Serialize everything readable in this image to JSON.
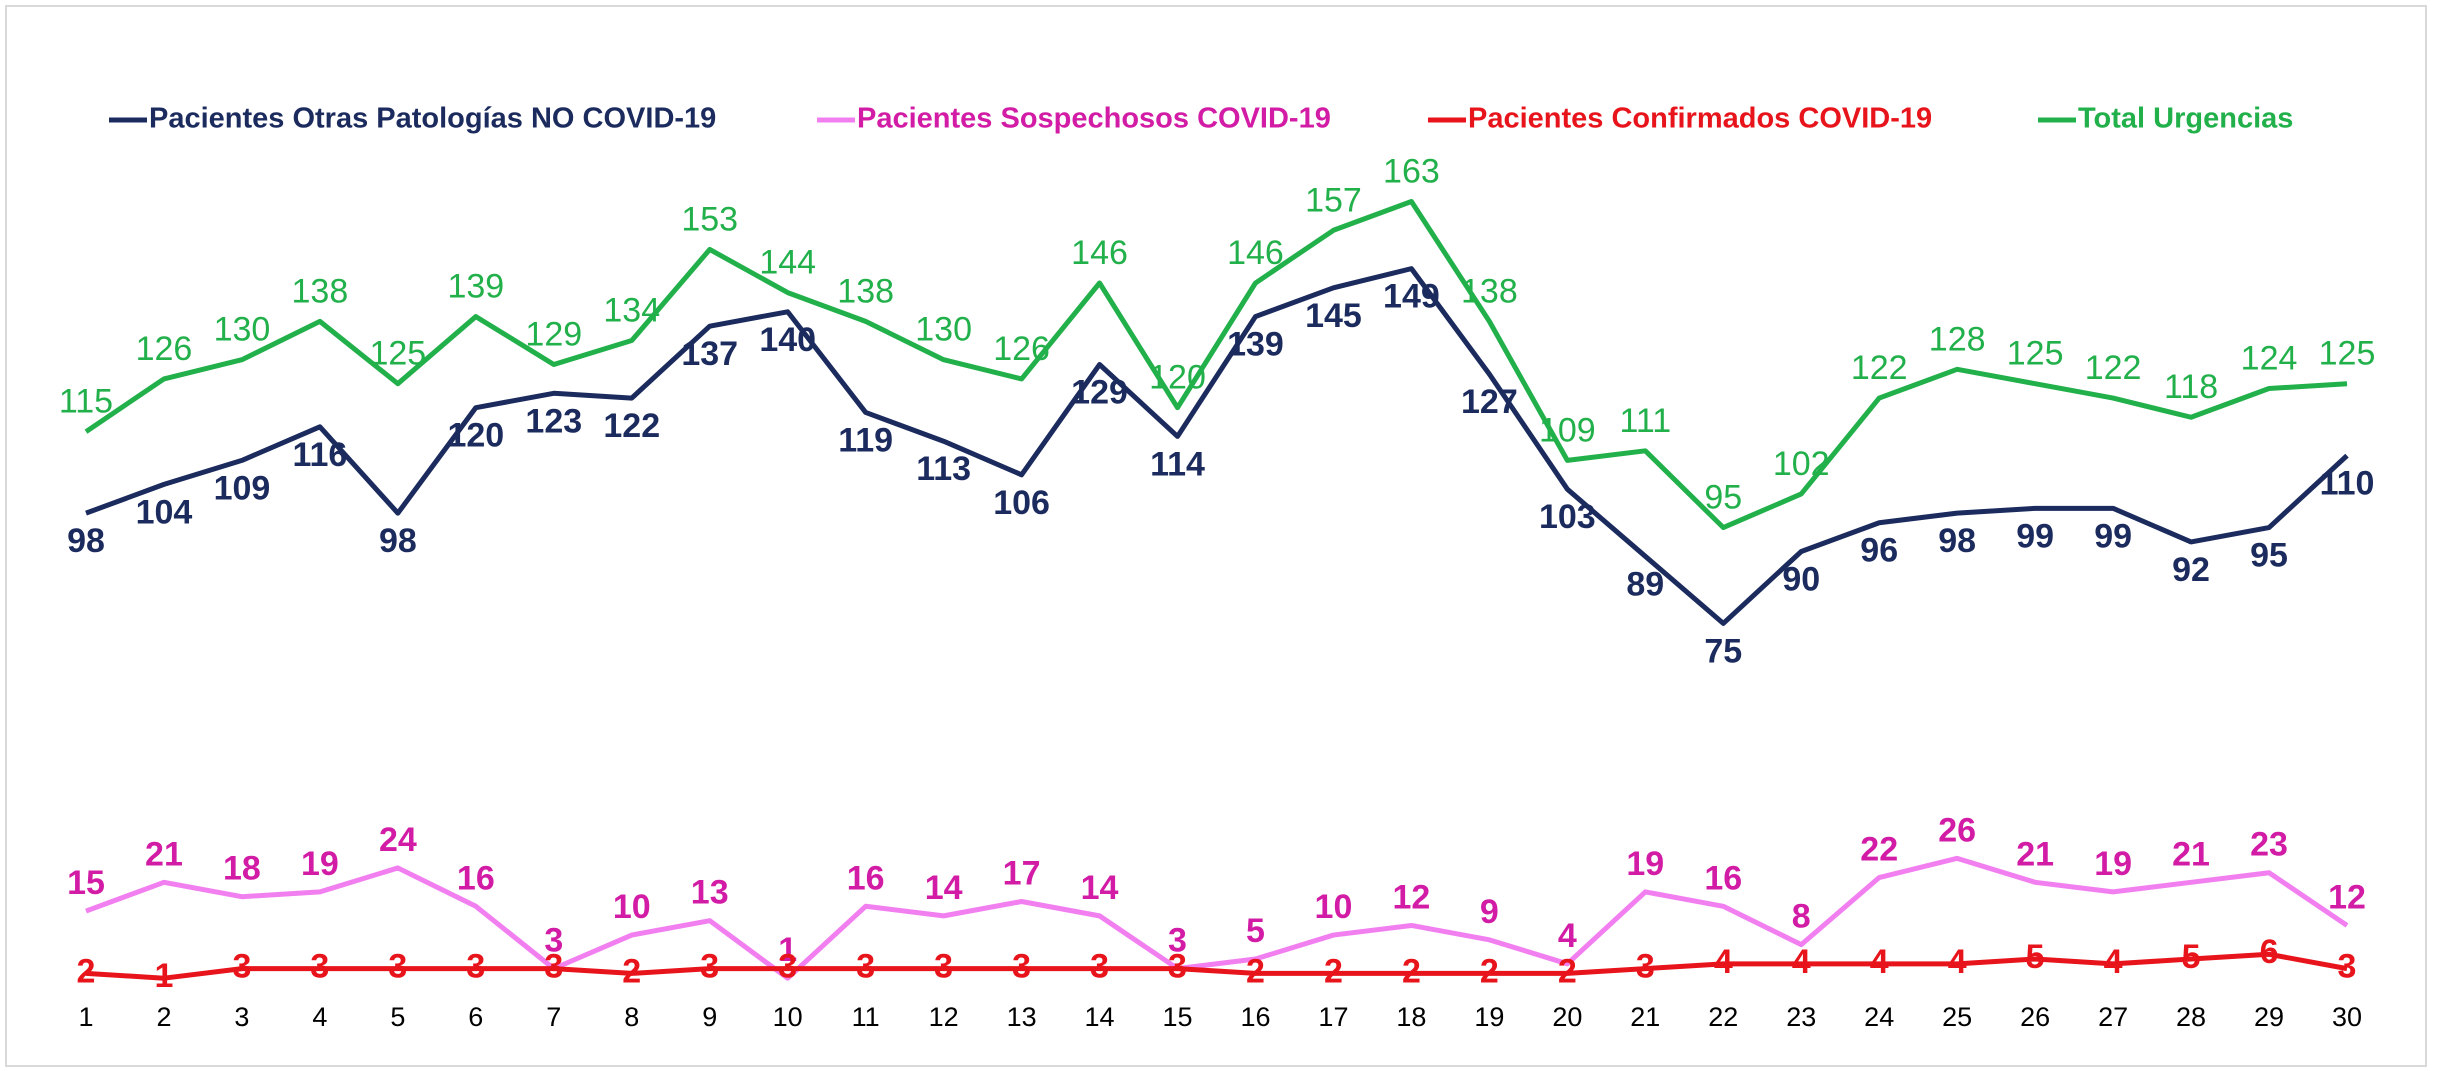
{
  "chart_data": {
    "type": "line",
    "categories": [
      "1",
      "2",
      "3",
      "4",
      "5",
      "6",
      "7",
      "8",
      "9",
      "10",
      "11",
      "12",
      "13",
      "14",
      "15",
      "16",
      "17",
      "18",
      "19",
      "20",
      "21",
      "22",
      "23",
      "24",
      "25",
      "26",
      "27",
      "28",
      "29",
      "30"
    ],
    "ylim": [
      0,
      180
    ],
    "series": [
      {
        "name": "Pacientes Otras Patologías NO COVID-19",
        "color": "#1c2b5e",
        "values": [
          98,
          104,
          109,
          116,
          98,
          120,
          123,
          122,
          137,
          140,
          119,
          113,
          106,
          129,
          114,
          139,
          145,
          149,
          127,
          103,
          89,
          75,
          90,
          96,
          98,
          99,
          99,
          92,
          95,
          110
        ]
      },
      {
        "name": "Pacientes Sospechosos COVID-19",
        "color": "#f27ff0",
        "values": [
          15,
          21,
          18,
          19,
          24,
          16,
          3,
          10,
          13,
          1,
          16,
          14,
          17,
          14,
          3,
          5,
          10,
          12,
          9,
          4,
          19,
          16,
          8,
          22,
          26,
          21,
          19,
          21,
          23,
          12
        ]
      },
      {
        "name": "Pacientes Confirmados COVID-19",
        "color": "#e8141c",
        "values": [
          2,
          1,
          3,
          3,
          3,
          3,
          3,
          2,
          3,
          3,
          3,
          3,
          3,
          3,
          3,
          2,
          2,
          2,
          2,
          2,
          3,
          4,
          4,
          4,
          4,
          5,
          4,
          5,
          6,
          3
        ]
      },
      {
        "name": "Total Urgencias",
        "color": "#22b04b",
        "values": [
          115,
          126,
          130,
          138,
          125,
          139,
          129,
          134,
          153,
          144,
          138,
          130,
          126,
          146,
          120,
          146,
          157,
          163,
          138,
          109,
          111,
          95,
          102,
          122,
          128,
          125,
          122,
          118,
          124,
          125
        ]
      }
    ]
  }
}
